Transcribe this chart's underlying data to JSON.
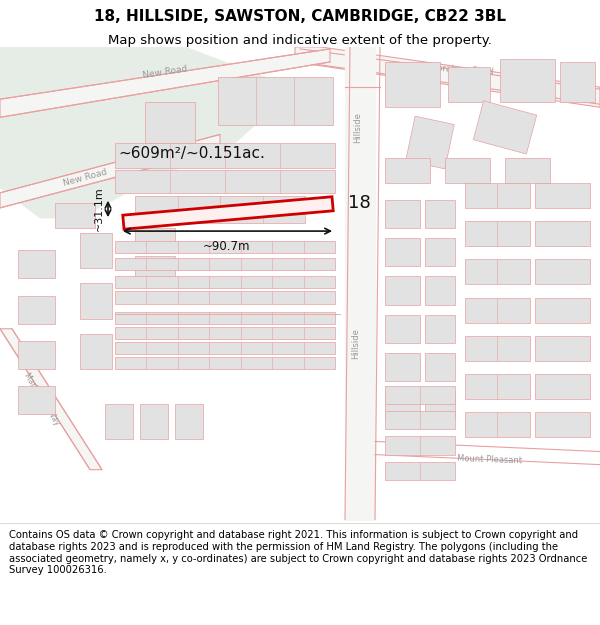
{
  "title": "18, HILLSIDE, SAWSTON, CAMBRIDGE, CB22 3BL",
  "subtitle": "Map shows position and indicative extent of the property.",
  "footer": "Contains OS data © Crown copyright and database right 2021. This information is subject to Crown copyright and database rights 2023 and is reproduced with the permission of HM Land Registry. The polygons (including the associated geometry, namely x, y co-ordinates) are subject to Crown copyright and database rights 2023 Ordnance Survey 100026316.",
  "area_text": "~609m²/~0.151ac.",
  "width_text": "~90.7m",
  "height_text": "~31.1m",
  "property_label": "18",
  "map_bg": "#f7f7f5",
  "green_color": "#e6ede6",
  "road_fill": "#f0f0ec",
  "building_fill": "#e2e2e2",
  "building_ec": "#e8a0a0",
  "road_ec": "#e8a0a0",
  "highlight_ec": "#cc0000",
  "highlight_fill": "#fff0f0",
  "ann_color": "#111111",
  "road_label_color": "#999999",
  "title_fontsize": 11,
  "subtitle_fontsize": 9.5,
  "footer_fontsize": 7.2
}
